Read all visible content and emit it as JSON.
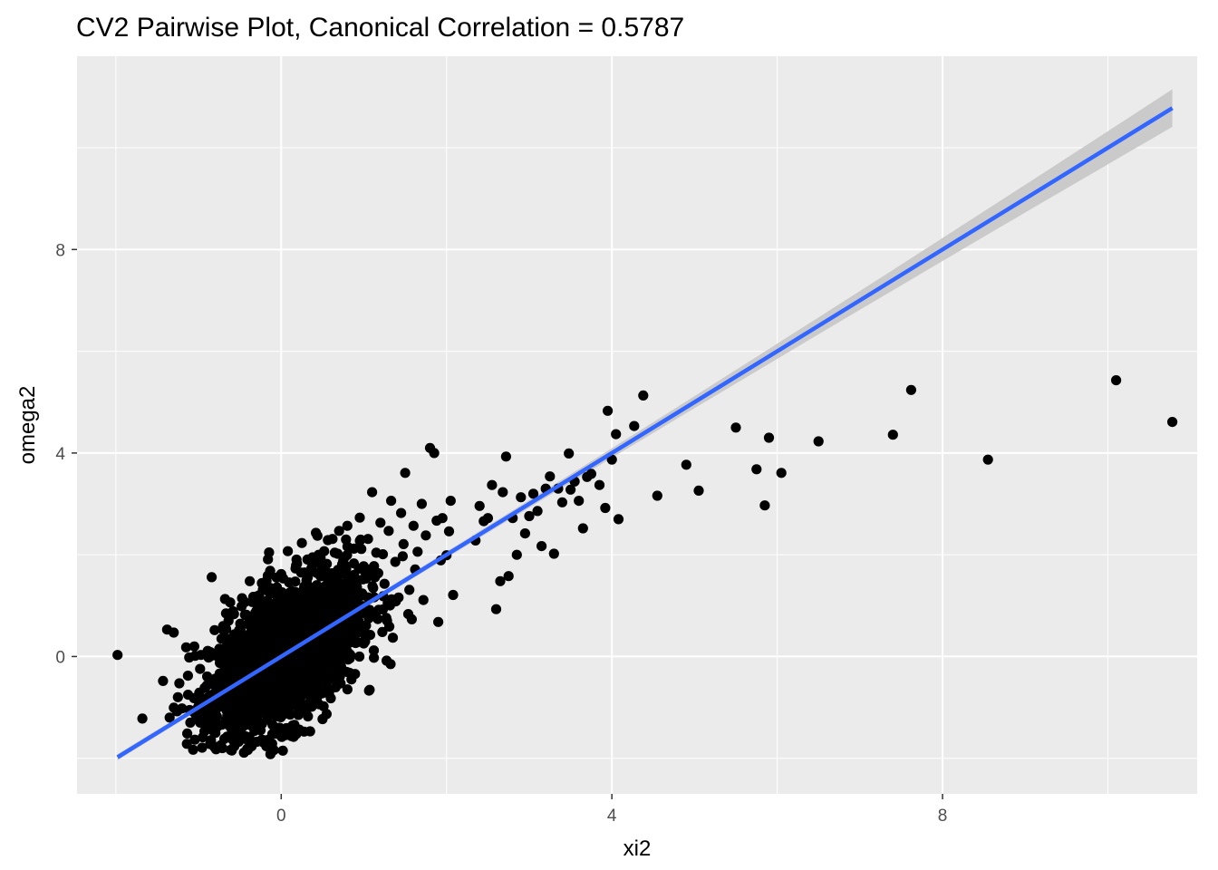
{
  "chart_data": {
    "type": "scatter",
    "title": "CV2 Pairwise Plot, Canonical Correlation = 0.5787",
    "xlabel": "xi2",
    "ylabel": "omega2",
    "xlim": [
      -2.47,
      11.08
    ],
    "ylim": [
      -2.7,
      11.8
    ],
    "x_ticks": [
      0,
      4,
      8
    ],
    "x_tick_labels": [
      "0",
      "4",
      "8"
    ],
    "y_ticks": [
      0,
      4,
      8
    ],
    "y_tick_labels": [
      "0",
      "4",
      "8"
    ],
    "grid": true,
    "legend": "none",
    "colors": {
      "panel_background": "#ebebeb",
      "grid": "#ffffff",
      "points": "#000000",
      "fit_line": "#3366ff",
      "confidence_band": "#c8c8c8"
    },
    "fit_line": {
      "method": "lm",
      "x": [
        -1.98,
        10.78
      ],
      "y": [
        -1.98,
        10.78
      ],
      "ci_halfwidth_at_x": [
        {
          "x": 0.0,
          "halfwidth": 0.05
        },
        {
          "x": 10.78,
          "halfwidth": 0.37
        }
      ]
    },
    "points": [
      {
        "x": -1.98,
        "y": 0.03
      },
      {
        "x": -1.68,
        "y": -1.22
      },
      {
        "x": -1.35,
        "y": -1.2
      },
      {
        "x": -1.43,
        "y": -0.48
      },
      {
        "x": -1.38,
        "y": 0.53
      },
      {
        "x": -1.3,
        "y": 0.47
      },
      {
        "x": -1.15,
        "y": 0.18
      },
      {
        "x": -1.25,
        "y": -0.8
      },
      {
        "x": -1.2,
        "y": -1.02
      },
      {
        "x": -1.1,
        "y": -1.3
      },
      {
        "x": -0.98,
        "y": -1.3
      },
      {
        "x": -0.97,
        "y": 0.03
      },
      {
        "x": -0.9,
        "y": -0.57
      },
      {
        "x": -0.8,
        "y": -1.0
      },
      {
        "x": -0.7,
        "y": 0.52
      },
      {
        "x": -0.68,
        "y": 1.13
      },
      {
        "x": -0.6,
        "y": -1.55
      },
      {
        "x": -0.55,
        "y": 0.01
      },
      {
        "x": -0.75,
        "y": 0.02
      },
      {
        "x": -0.63,
        "y": -0.87
      },
      {
        "x": -0.58,
        "y": 0.83
      },
      {
        "x": -0.5,
        "y": -1.23
      },
      {
        "x": -0.46,
        "y": 0.34
      },
      {
        "x": -0.43,
        "y": -1.62
      },
      {
        "x": -0.38,
        "y": 1.48
      },
      {
        "x": -0.32,
        "y": -0.42
      },
      {
        "x": -0.3,
        "y": 1.18
      },
      {
        "x": -0.25,
        "y": -1.45
      },
      {
        "x": -0.22,
        "y": 0.68
      },
      {
        "x": -0.2,
        "y": -0.93
      },
      {
        "x": -0.16,
        "y": 1.91
      },
      {
        "x": -0.13,
        "y": -1.92
      },
      {
        "x": -0.1,
        "y": 0.25
      },
      {
        "x": -0.08,
        "y": -0.55
      },
      {
        "x": -0.05,
        "y": 1.33
      },
      {
        "x": -0.02,
        "y": -1.4
      },
      {
        "x": 0.0,
        "y": 1.62
      },
      {
        "x": 0.02,
        "y": -1.85
      },
      {
        "x": 0.05,
        "y": 0.48
      },
      {
        "x": 0.08,
        "y": 2.07
      },
      {
        "x": 0.1,
        "y": -0.74
      },
      {
        "x": 0.12,
        "y": 1.03
      },
      {
        "x": 0.15,
        "y": -1.58
      },
      {
        "x": 0.18,
        "y": 1.79
      },
      {
        "x": 0.2,
        "y": -0.22
      },
      {
        "x": 0.22,
        "y": 0.81
      },
      {
        "x": 0.25,
        "y": 2.23
      },
      {
        "x": 0.28,
        "y": -1.03
      },
      {
        "x": 0.3,
        "y": 1.41
      },
      {
        "x": 0.32,
        "y": 0.16
      },
      {
        "x": 0.35,
        "y": -1.47
      },
      {
        "x": 0.38,
        "y": 1.95
      },
      {
        "x": 0.4,
        "y": 0.67
      },
      {
        "x": 0.42,
        "y": 2.43
      },
      {
        "x": 0.45,
        "y": -0.37
      },
      {
        "x": 0.48,
        "y": 1.19
      },
      {
        "x": 0.5,
        "y": -1.23
      },
      {
        "x": 0.52,
        "y": 2.07
      },
      {
        "x": 0.55,
        "y": 0.93
      },
      {
        "x": 0.58,
        "y": 1.63
      },
      {
        "x": 0.6,
        "y": -0.82
      },
      {
        "x": 0.62,
        "y": 2.31
      },
      {
        "x": 0.65,
        "y": 0.41
      },
      {
        "x": 0.68,
        "y": 1.37
      },
      {
        "x": 0.7,
        "y": 2.47
      },
      {
        "x": 0.72,
        "y": -0.1
      },
      {
        "x": 0.75,
        "y": 1.88
      },
      {
        "x": 0.78,
        "y": 0.77
      },
      {
        "x": 0.8,
        "y": 2.57
      },
      {
        "x": 0.82,
        "y": 1.06
      },
      {
        "x": 0.85,
        "y": -0.45
      },
      {
        "x": 0.88,
        "y": 2.12
      },
      {
        "x": 0.9,
        "y": 1.52
      },
      {
        "x": 0.92,
        "y": 0.28
      },
      {
        "x": 0.95,
        "y": 2.73
      },
      {
        "x": 0.98,
        "y": 1.24
      },
      {
        "x": 1.0,
        "y": 0.58
      },
      {
        "x": 1.05,
        "y": 2.31
      },
      {
        "x": 1.08,
        "y": 1.71
      },
      {
        "x": 1.1,
        "y": 3.23
      },
      {
        "x": 1.12,
        "y": 0.12
      },
      {
        "x": 1.15,
        "y": 2.04
      },
      {
        "x": 1.18,
        "y": 0.92
      },
      {
        "x": 1.2,
        "y": 2.63
      },
      {
        "x": 1.25,
        "y": 1.43
      },
      {
        "x": 1.3,
        "y": 2.47
      },
      {
        "x": 1.33,
        "y": 3.06
      },
      {
        "x": 1.35,
        "y": 0.37
      },
      {
        "x": 1.38,
        "y": 1.86
      },
      {
        "x": 1.42,
        "y": 1.16
      },
      {
        "x": 1.45,
        "y": 2.82
      },
      {
        "x": 1.48,
        "y": 2.21
      },
      {
        "x": 1.5,
        "y": 3.61
      },
      {
        "x": 1.55,
        "y": 1.31
      },
      {
        "x": 1.58,
        "y": 0.73
      },
      {
        "x": 1.6,
        "y": 2.57
      },
      {
        "x": 1.62,
        "y": 1.71
      },
      {
        "x": 1.65,
        "y": 2.06
      },
      {
        "x": 1.7,
        "y": 3.0
      },
      {
        "x": 1.72,
        "y": 1.11
      },
      {
        "x": 1.75,
        "y": 2.38
      },
      {
        "x": 1.8,
        "y": 4.1
      },
      {
        "x": 1.85,
        "y": 4.0
      },
      {
        "x": 1.88,
        "y": 2.67
      },
      {
        "x": 1.9,
        "y": 0.68
      },
      {
        "x": 1.93,
        "y": 1.89
      },
      {
        "x": 1.95,
        "y": 2.72
      },
      {
        "x": 2.0,
        "y": 1.99
      },
      {
        "x": 2.03,
        "y": 2.46
      },
      {
        "x": 2.05,
        "y": 3.06
      },
      {
        "x": 2.08,
        "y": 1.21
      },
      {
        "x": 2.35,
        "y": 2.28
      },
      {
        "x": 2.4,
        "y": 2.96
      },
      {
        "x": 2.45,
        "y": 2.66
      },
      {
        "x": 2.5,
        "y": 2.72
      },
      {
        "x": 2.55,
        "y": 3.37
      },
      {
        "x": 2.6,
        "y": 0.93
      },
      {
        "x": 2.65,
        "y": 1.48
      },
      {
        "x": 2.68,
        "y": 3.23
      },
      {
        "x": 2.72,
        "y": 3.93
      },
      {
        "x": 2.75,
        "y": 1.58
      },
      {
        "x": 2.8,
        "y": 2.72
      },
      {
        "x": 2.85,
        "y": 2.0
      },
      {
        "x": 2.9,
        "y": 3.13
      },
      {
        "x": 2.95,
        "y": 2.42
      },
      {
        "x": 3.0,
        "y": 2.76
      },
      {
        "x": 3.05,
        "y": 3.2
      },
      {
        "x": 3.1,
        "y": 2.86
      },
      {
        "x": 3.15,
        "y": 2.17
      },
      {
        "x": 3.2,
        "y": 3.3
      },
      {
        "x": 3.25,
        "y": 3.54
      },
      {
        "x": 3.3,
        "y": 2.02
      },
      {
        "x": 3.35,
        "y": 3.3
      },
      {
        "x": 3.4,
        "y": 3.03
      },
      {
        "x": 3.48,
        "y": 3.99
      },
      {
        "x": 3.5,
        "y": 3.28
      },
      {
        "x": 3.55,
        "y": 3.44
      },
      {
        "x": 3.6,
        "y": 3.06
      },
      {
        "x": 3.65,
        "y": 2.52
      },
      {
        "x": 3.7,
        "y": 3.53
      },
      {
        "x": 3.75,
        "y": 3.59
      },
      {
        "x": 3.85,
        "y": 3.37
      },
      {
        "x": 3.92,
        "y": 2.92
      },
      {
        "x": 3.95,
        "y": 4.83
      },
      {
        "x": 4.0,
        "y": 3.87
      },
      {
        "x": 4.05,
        "y": 4.37
      },
      {
        "x": 4.08,
        "y": 2.7
      },
      {
        "x": 4.27,
        "y": 4.53
      },
      {
        "x": 4.38,
        "y": 5.13
      },
      {
        "x": 4.55,
        "y": 3.16
      },
      {
        "x": 4.9,
        "y": 3.77
      },
      {
        "x": 5.05,
        "y": 3.26
      },
      {
        "x": 5.5,
        "y": 4.5
      },
      {
        "x": 5.75,
        "y": 3.68
      },
      {
        "x": 5.85,
        "y": 2.97
      },
      {
        "x": 5.9,
        "y": 4.3
      },
      {
        "x": 6.05,
        "y": 3.61
      },
      {
        "x": 6.5,
        "y": 4.23
      },
      {
        "x": 7.4,
        "y": 4.36
      },
      {
        "x": 7.62,
        "y": 5.24
      },
      {
        "x": 8.55,
        "y": 3.87
      },
      {
        "x": 10.1,
        "y": 5.43
      },
      {
        "x": 10.78,
        "y": 4.61
      }
    ],
    "dense_cluster": {
      "description_free_note": "",
      "center": [
        0.05,
        0.05
      ],
      "sd": [
        0.45,
        0.8
      ],
      "corr": 0.55,
      "n": 2200
    }
  }
}
